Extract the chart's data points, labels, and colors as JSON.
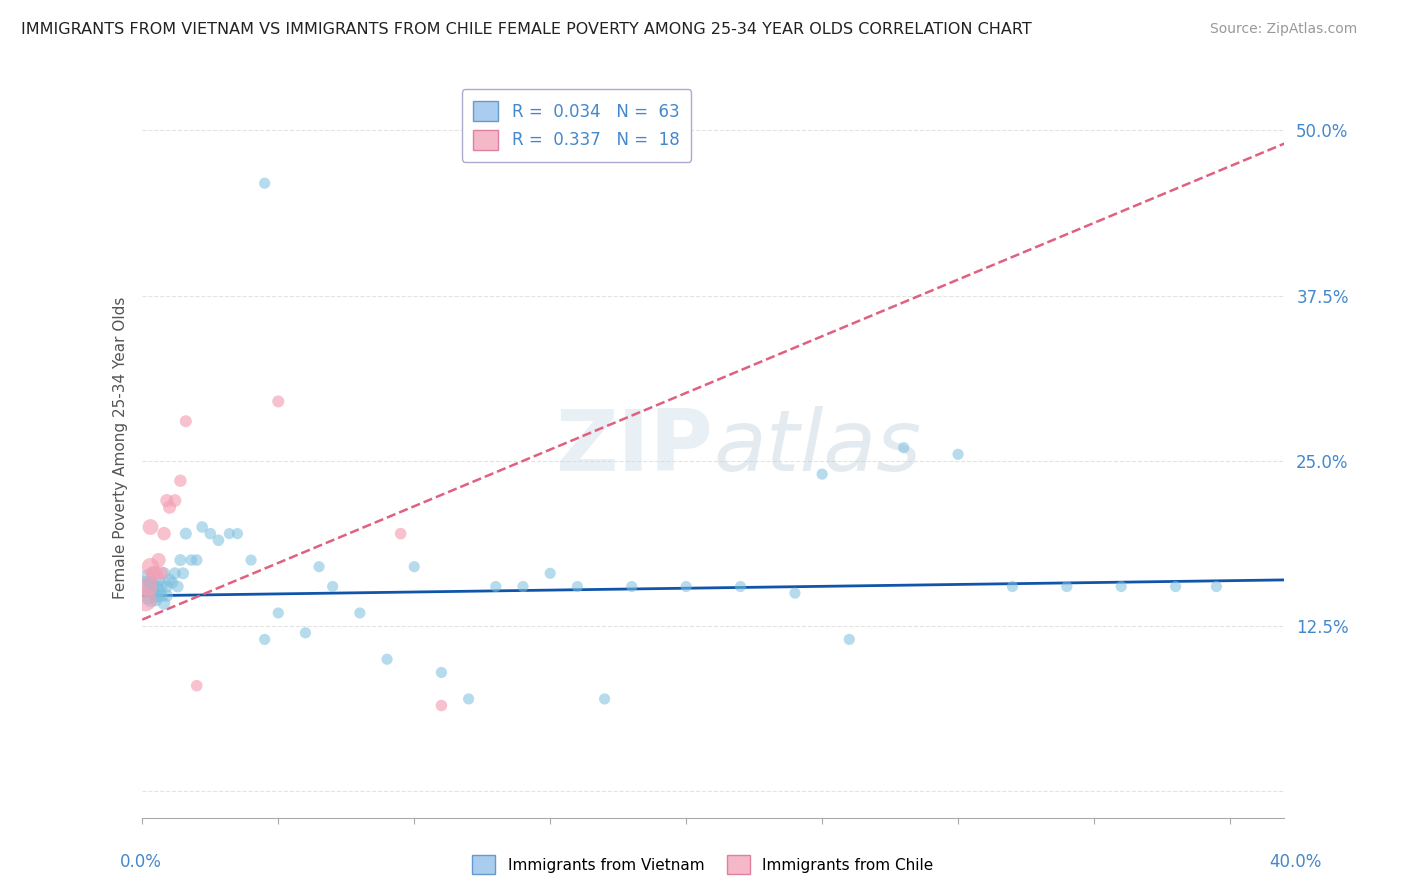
{
  "title": "IMMIGRANTS FROM VIETNAM VS IMMIGRANTS FROM CHILE FEMALE POVERTY AMONG 25-34 YEAR OLDS CORRELATION CHART",
  "source": "Source: ZipAtlas.com",
  "ylabel": "Female Poverty Among 25-34 Year Olds",
  "xlim": [
    0.0,
    0.42
  ],
  "ylim": [
    -0.02,
    0.54
  ],
  "yticks": [
    0.0,
    0.125,
    0.25,
    0.375,
    0.5
  ],
  "ytick_labels": [
    "",
    "12.5%",
    "25.0%",
    "37.5%",
    "50.0%"
  ],
  "vietnam_color": "#7abfdf",
  "chile_color": "#f4a0b5",
  "vietnam_line_color": "#1155aa",
  "chile_line_color": "#e06080",
  "background_color": "#ffffff",
  "grid_color": "#dddddd",
  "watermark_text": "ZIPatlas",
  "watermark_color": "#ccdde8",
  "vietnam_x": [
    0.001,
    0.002,
    0.002,
    0.003,
    0.003,
    0.003,
    0.004,
    0.004,
    0.005,
    0.005,
    0.005,
    0.006,
    0.006,
    0.007,
    0.007,
    0.008,
    0.008,
    0.009,
    0.009,
    0.01,
    0.011,
    0.012,
    0.013,
    0.014,
    0.015,
    0.016,
    0.018,
    0.02,
    0.022,
    0.025,
    0.028,
    0.032,
    0.035,
    0.04,
    0.045,
    0.05,
    0.06,
    0.065,
    0.07,
    0.08,
    0.09,
    0.1,
    0.11,
    0.12,
    0.13,
    0.14,
    0.15,
    0.16,
    0.17,
    0.18,
    0.2,
    0.22,
    0.24,
    0.26,
    0.28,
    0.3,
    0.32,
    0.34,
    0.36,
    0.38,
    0.395,
    0.25,
    0.045
  ],
  "vietnam_y": [
    0.155,
    0.148,
    0.162,
    0.155,
    0.145,
    0.158,
    0.15,
    0.165,
    0.148,
    0.155,
    0.145,
    0.152,
    0.16,
    0.148,
    0.155,
    0.165,
    0.142,
    0.155,
    0.148,
    0.16,
    0.158,
    0.165,
    0.155,
    0.175,
    0.165,
    0.195,
    0.175,
    0.175,
    0.2,
    0.195,
    0.19,
    0.195,
    0.195,
    0.175,
    0.46,
    0.135,
    0.12,
    0.17,
    0.155,
    0.135,
    0.1,
    0.17,
    0.09,
    0.07,
    0.155,
    0.155,
    0.165,
    0.155,
    0.07,
    0.155,
    0.155,
    0.155,
    0.15,
    0.115,
    0.26,
    0.255,
    0.155,
    0.155,
    0.155,
    0.155,
    0.155,
    0.24,
    0.115
  ],
  "vietnam_size": [
    220,
    160,
    140,
    130,
    120,
    110,
    100,
    100,
    100,
    90,
    90,
    90,
    90,
    80,
    80,
    80,
    80,
    80,
    80,
    80,
    75,
    75,
    75,
    75,
    75,
    75,
    70,
    70,
    70,
    70,
    70,
    65,
    65,
    65,
    65,
    65,
    65,
    65,
    65,
    65,
    65,
    65,
    65,
    65,
    65,
    65,
    65,
    65,
    65,
    65,
    65,
    65,
    65,
    65,
    65,
    65,
    65,
    65,
    65,
    65,
    65,
    65,
    65
  ],
  "chile_x": [
    0.001,
    0.002,
    0.003,
    0.003,
    0.004,
    0.005,
    0.006,
    0.007,
    0.008,
    0.009,
    0.01,
    0.012,
    0.014,
    0.016,
    0.05,
    0.095,
    0.11,
    0.02
  ],
  "chile_y": [
    0.145,
    0.155,
    0.17,
    0.2,
    0.165,
    0.165,
    0.175,
    0.165,
    0.195,
    0.22,
    0.215,
    0.22,
    0.235,
    0.28,
    0.295,
    0.195,
    0.065,
    0.08
  ],
  "chile_size": [
    280,
    200,
    160,
    130,
    110,
    110,
    105,
    100,
    95,
    90,
    90,
    85,
    80,
    75,
    75,
    70,
    70,
    70
  ],
  "vietnam_line_x": [
    0.0,
    0.42
  ],
  "vietnam_line_y": [
    0.148,
    0.16
  ],
  "chile_line_x": [
    0.0,
    0.42
  ],
  "chile_line_y": [
    0.13,
    0.49
  ]
}
